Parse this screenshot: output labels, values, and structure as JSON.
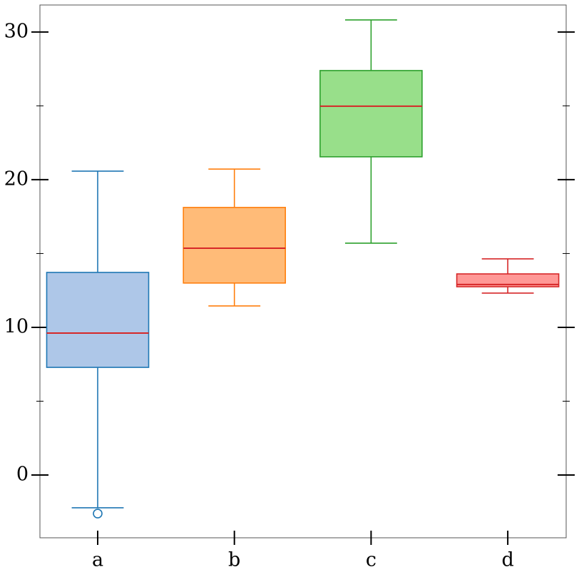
{
  "chart_data": {
    "type": "box",
    "categories": [
      "a",
      "b",
      "c",
      "d"
    ],
    "boxes": [
      {
        "whislo": -2.22,
        "q1": 7.29,
        "med": 9.61,
        "q3": 13.72,
        "whishi": 20.58,
        "fliers": [
          -2.61
        ],
        "color": "#aec7e8",
        "edgecolor": "#1f77b4"
      },
      {
        "whislo": 11.45,
        "q1": 13.0,
        "med": 15.36,
        "q3": 18.12,
        "whishi": 20.72,
        "fliers": [],
        "color": "#ffbb78",
        "edgecolor": "#ff7f0e"
      },
      {
        "whislo": 15.7,
        "q1": 21.55,
        "med": 24.98,
        "q3": 27.39,
        "whishi": 30.82,
        "fliers": [],
        "color": "#98df8a",
        "edgecolor": "#2ca02c"
      },
      {
        "whislo": 12.32,
        "q1": 12.75,
        "med": 12.9,
        "q3": 13.62,
        "whishi": 14.64,
        "fliers": [],
        "color": "#ff9896",
        "edgecolor": "#d62728"
      }
    ],
    "median_color": "#d62728",
    "ylim": [
      -4.25,
      31.83
    ],
    "yticks": [
      0,
      10,
      20,
      30
    ],
    "yminorticks": [
      5,
      15,
      25
    ]
  }
}
